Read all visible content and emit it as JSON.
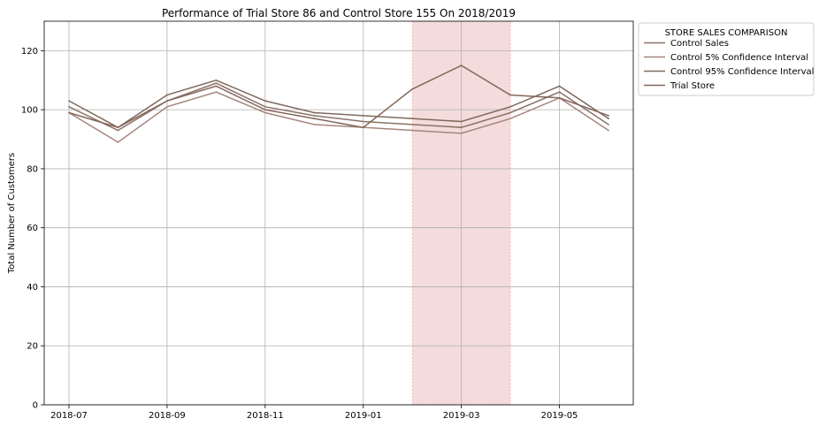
{
  "chart_data": {
    "type": "line",
    "title": "Performance of Trial Store 86 and Control Store 155 On 2018/2019",
    "xlabel": "",
    "ylabel": "Total Number of Customers",
    "x": [
      "2018-07",
      "2018-08",
      "2018-09",
      "2018-10",
      "2018-11",
      "2018-12",
      "2019-01",
      "2019-02",
      "2019-03",
      "2019-04",
      "2019-05",
      "2019-06"
    ],
    "xticks": [
      "2018-07",
      "2018-09",
      "2018-11",
      "2019-01",
      "2019-03",
      "2019-05"
    ],
    "ylim": [
      0,
      130
    ],
    "yticks": [
      0,
      20,
      40,
      60,
      80,
      100,
      120
    ],
    "grid": true,
    "highlight": {
      "from": "2019-02",
      "to": "2019-04",
      "color": "#f4dcdc"
    },
    "legend": {
      "title": "STORE SALES COMPARISON",
      "placement": "outside top-right"
    },
    "series": [
      {
        "name": "Control Sales",
        "color": "#8b7366",
        "values": [
          101,
          93,
          103,
          109,
          101,
          98,
          96,
          95,
          94,
          99,
          106,
          95
        ]
      },
      {
        "name": "Control 5% Confidence Interval",
        "color": "#a5867d",
        "values": [
          99,
          89,
          101,
          106,
          99,
          95,
          94,
          93,
          92,
          97,
          104,
          93
        ]
      },
      {
        "name": "Control 95% Confidence Interval",
        "color": "#7e6a5c",
        "values": [
          103,
          94,
          105,
          110,
          103,
          99,
          98,
          97,
          96,
          101,
          108,
          97
        ]
      },
      {
        "name": "Trial Store",
        "color": "#85665a",
        "values": [
          99,
          94,
          103,
          108,
          100,
          97,
          94,
          107,
          115,
          105,
          104,
          98
        ]
      }
    ]
  }
}
